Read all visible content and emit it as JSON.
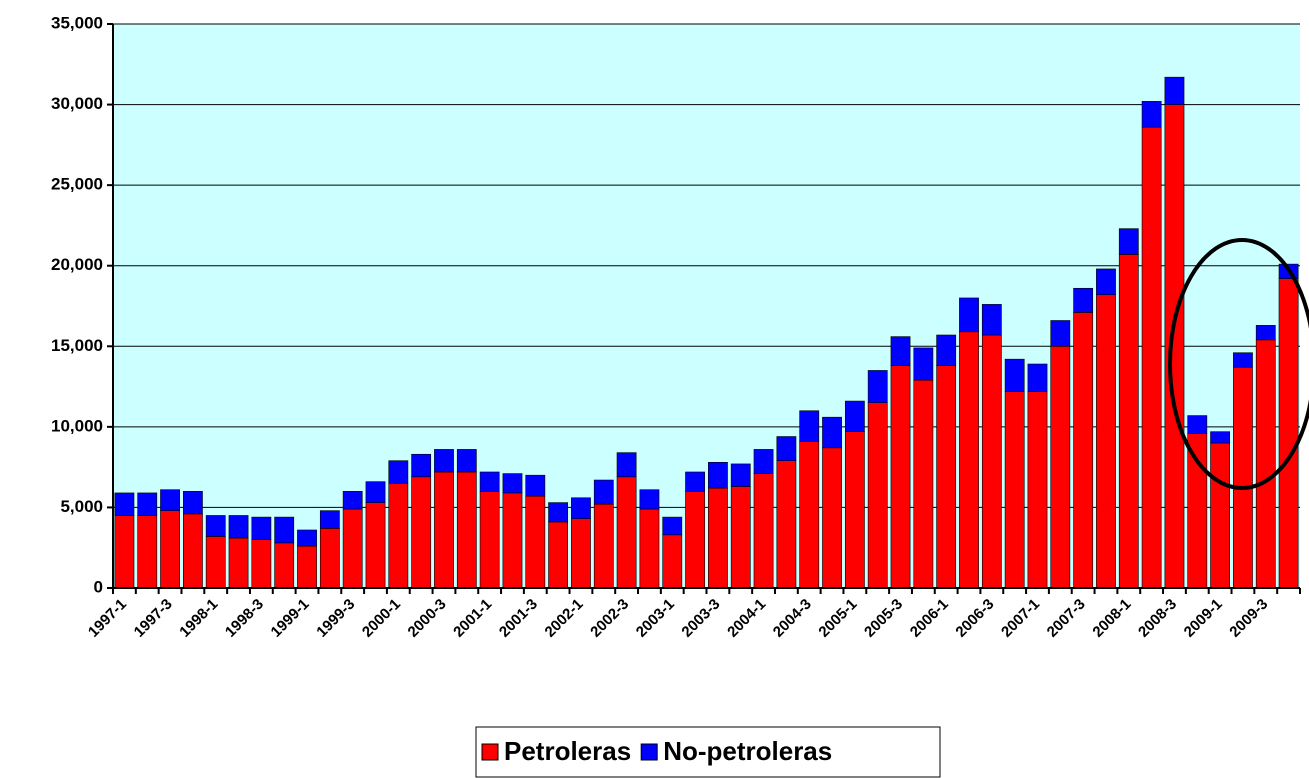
{
  "chart_data": {
    "type": "stacked_bar",
    "categories": [
      "1997-1",
      null,
      "1997-3",
      null,
      "1998-1",
      null,
      "1998-3",
      null,
      "1999-1",
      null,
      "1999-3",
      null,
      "2000-1",
      null,
      "2000-3",
      null,
      "2001-1",
      null,
      "2001-3",
      null,
      "2002-1",
      null,
      "2002-3",
      null,
      "2003-1",
      null,
      "2003-3",
      null,
      "2004-1",
      null,
      "2004-3",
      null,
      "2005-1",
      null,
      "2005-3",
      null,
      "2006-1",
      null,
      "2006-3",
      null,
      "2007-1",
      null,
      "2007-3",
      null,
      "2008-1",
      null,
      "2008-3",
      null,
      "2009-1",
      null,
      "2009-3",
      null
    ],
    "series": [
      {
        "name": "Petroleras",
        "color": "#ff0000",
        "values": [
          4500,
          4500,
          4800,
          4600,
          3200,
          3100,
          3000,
          2800,
          2600,
          3700,
          4900,
          5300,
          6500,
          6900,
          7200,
          7200,
          6000,
          5900,
          5700,
          4100,
          4300,
          5200,
          6900,
          4900,
          3300,
          6000,
          6200,
          6300,
          7100,
          7900,
          9100,
          8700,
          9700,
          11500,
          13800,
          12900,
          13800,
          15900,
          15700,
          12200,
          12200,
          15000,
          17100,
          18200,
          20700,
          28600,
          30000,
          9600,
          9000,
          13700,
          15400,
          19200
        ]
      },
      {
        "name": "No-petroleras",
        "color": "#0000ff",
        "values": [
          1400,
          1400,
          1300,
          1400,
          1300,
          1400,
          1400,
          1600,
          1000,
          1100,
          1100,
          1300,
          1400,
          1400,
          1400,
          1400,
          1200,
          1200,
          1300,
          1200,
          1300,
          1500,
          1500,
          1200,
          1100,
          1200,
          1600,
          1400,
          1500,
          1500,
          1900,
          1900,
          1900,
          2000,
          1800,
          2000,
          1900,
          2100,
          1900,
          2000,
          1700,
          1600,
          1500,
          1600,
          1600,
          1600,
          1700,
          1100,
          700,
          900,
          900,
          900
        ]
      }
    ],
    "ylim": [
      0,
      35000
    ],
    "yticks": [
      0,
      {
        "value": 5000,
        "label": "5,000"
      },
      {
        "value": 10000,
        "label": "10,000"
      },
      {
        "value": 15000,
        "label": "15,000"
      },
      {
        "value": 20000,
        "label": "20,000"
      },
      {
        "value": 25000,
        "label": "25,000"
      },
      {
        "value": 30000,
        "label": "30,000"
      },
      {
        "value": 35000,
        "label": "35,000"
      }
    ],
    "grid": true,
    "legend": "bottom"
  }
}
